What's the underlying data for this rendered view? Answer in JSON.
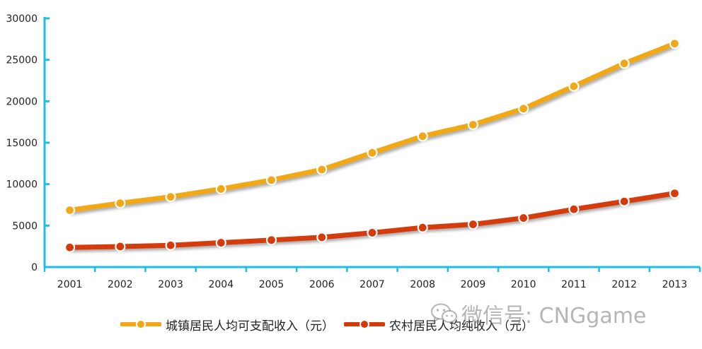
{
  "chart_data": {
    "type": "line",
    "title": "",
    "xlabel": "",
    "ylabel": "",
    "categories": [
      "2001",
      "2002",
      "2003",
      "2004",
      "2005",
      "2006",
      "2007",
      "2008",
      "2009",
      "2010",
      "2011",
      "2012",
      "2013"
    ],
    "ylim": [
      0,
      30000
    ],
    "yticks": [
      0,
      5000,
      10000,
      15000,
      20000,
      25000,
      30000
    ],
    "grid": false,
    "legend_position": "bottom",
    "series": [
      {
        "name": "城镇居民人均可支配收入（元）",
        "color": "#F0A818",
        "values": [
          6860,
          7703,
          8472,
          9422,
          10493,
          11759,
          13786,
          15781,
          17175,
          19109,
          21810,
          24565,
          26955
        ]
      },
      {
        "name": "农村居民人均纯收入（元）",
        "color": "#D43A0A",
        "values": [
          2366,
          2476,
          2622,
          2936,
          3255,
          3587,
          4140,
          4761,
          5153,
          5919,
          6977,
          7917,
          8896
        ]
      }
    ]
  },
  "colors": {
    "axis": "#1EBDE6",
    "text": "#222222"
  },
  "watermark": {
    "icon": "wechat-icon",
    "text": "微信号: CNGgame"
  }
}
